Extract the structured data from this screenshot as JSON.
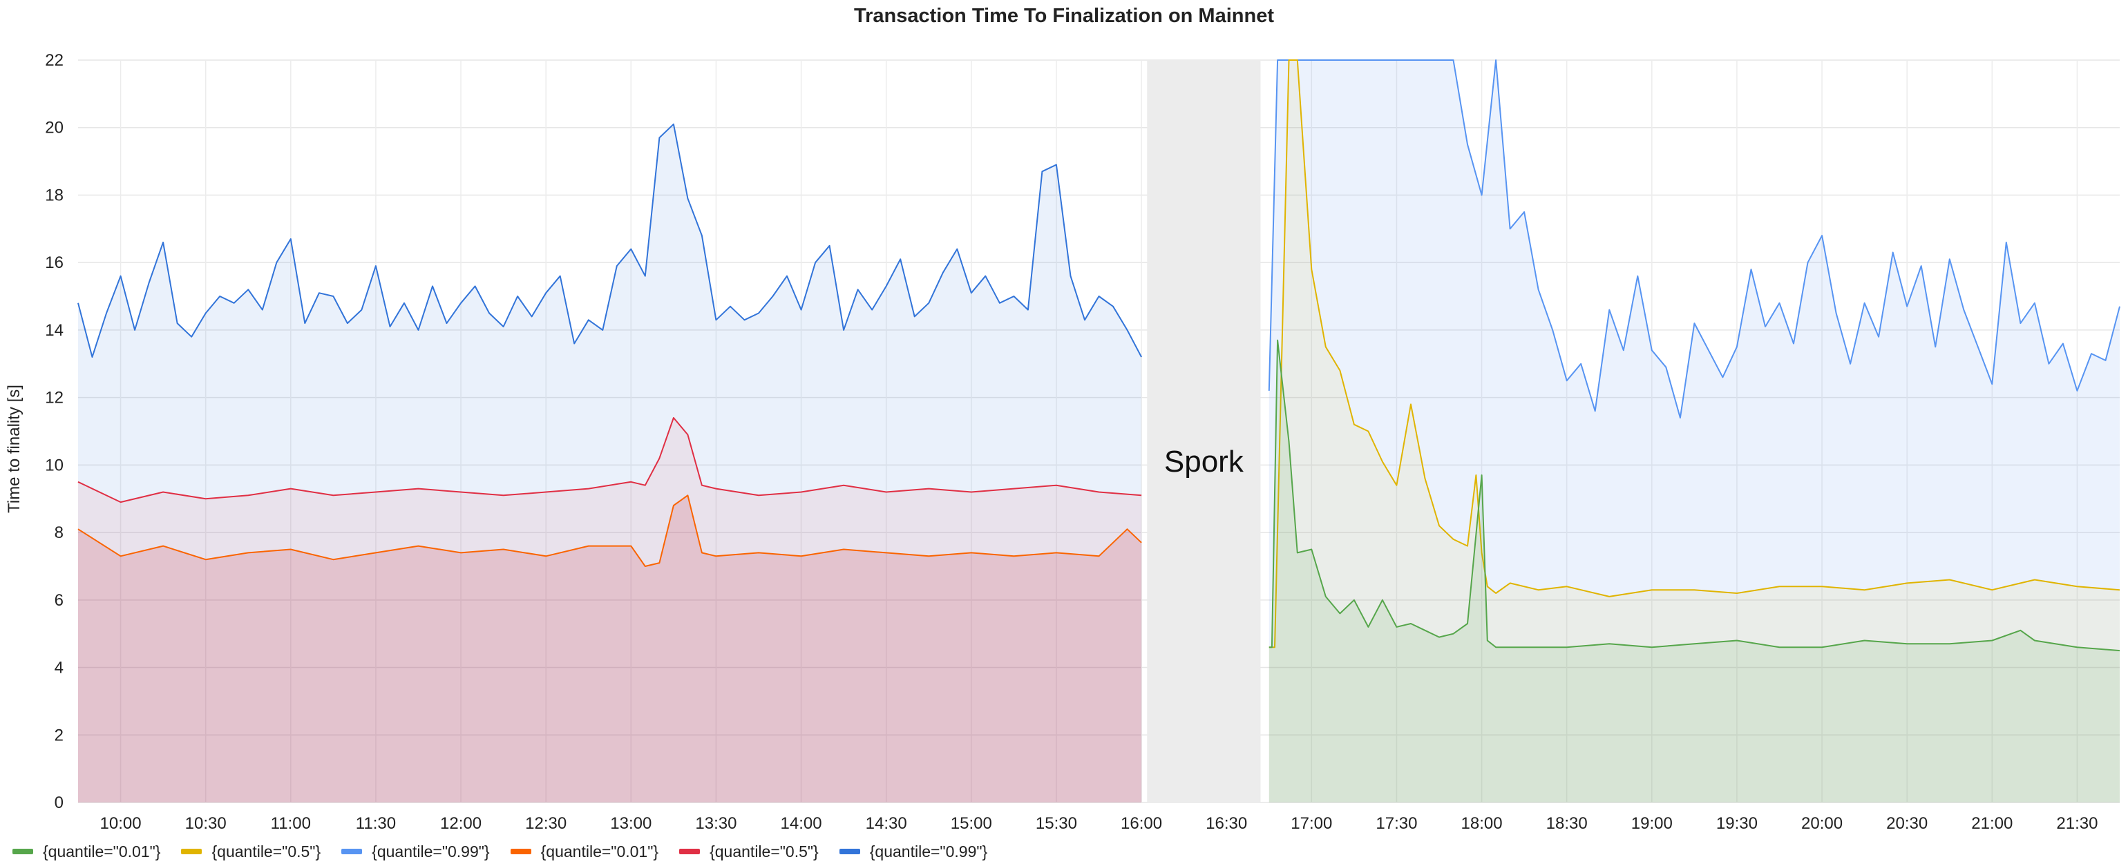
{
  "chart_data": {
    "type": "area",
    "title": "Transaction Time To Finalization on Mainnet",
    "ylabel": "Time to finality [s]",
    "xlabel": "",
    "ylim": [
      0,
      22
    ],
    "y_ticks": [
      0,
      2,
      4,
      6,
      8,
      10,
      12,
      14,
      16,
      18,
      20,
      22
    ],
    "xlim": [
      "09:45",
      "21:45"
    ],
    "x_ticks": [
      "10:00",
      "10:30",
      "11:00",
      "11:30",
      "12:00",
      "12:30",
      "13:00",
      "13:30",
      "14:00",
      "14:30",
      "15:00",
      "15:30",
      "16:00",
      "16:30",
      "17:00",
      "17:30",
      "18:00",
      "18:30",
      "19:00",
      "19:30",
      "20:00",
      "20:30",
      "21:00",
      "21:30"
    ],
    "grid": true,
    "annotation": {
      "text": "Spork",
      "x_start": "16:02",
      "x_end": "16:42",
      "color": "#ececec"
    },
    "legend_position": "bottom-left",
    "legend": [
      {
        "label": "{quantile=\"0.01\"}",
        "color": "#56a64b"
      },
      {
        "label": "{quantile=\"0.5\"}",
        "color": "#e0b400"
      },
      {
        "label": "{quantile=\"0.99\"}",
        "color": "#5794f2"
      },
      {
        "label": "{quantile=\"0.01\"}",
        "color": "#fa6400"
      },
      {
        "label": "{quantile=\"0.5\"}",
        "color": "#e02f44"
      },
      {
        "label": "{quantile=\"0.99\"}",
        "color": "#3274d9"
      }
    ],
    "series": [
      {
        "color": "#3274d9",
        "fill": "rgba(50,116,217,0.10)",
        "x": [
          "09:45",
          "09:50",
          "09:55",
          "10:00",
          "10:05",
          "10:10",
          "10:15",
          "10:20",
          "10:25",
          "10:30",
          "10:35",
          "10:40",
          "10:45",
          "10:50",
          "10:55",
          "11:00",
          "11:05",
          "11:10",
          "11:15",
          "11:20",
          "11:25",
          "11:30",
          "11:35",
          "11:40",
          "11:45",
          "11:50",
          "11:55",
          "12:00",
          "12:05",
          "12:10",
          "12:15",
          "12:20",
          "12:25",
          "12:30",
          "12:35",
          "12:40",
          "12:45",
          "12:50",
          "12:55",
          "13:00",
          "13:05",
          "13:10",
          "13:15",
          "13:20",
          "13:25",
          "13:30",
          "13:35",
          "13:40",
          "13:45",
          "13:50",
          "13:55",
          "14:00",
          "14:05",
          "14:10",
          "14:15",
          "14:20",
          "14:25",
          "14:30",
          "14:35",
          "14:40",
          "14:45",
          "14:50",
          "14:55",
          "15:00",
          "15:05",
          "15:10",
          "15:15",
          "15:20",
          "15:25",
          "15:30",
          "15:35",
          "15:40",
          "15:45",
          "15:50",
          "15:55",
          "16:00"
        ],
        "values": [
          14.8,
          13.2,
          14.5,
          15.6,
          14.0,
          15.4,
          16.6,
          14.2,
          13.8,
          14.5,
          15.0,
          14.8,
          15.2,
          14.6,
          16.0,
          16.7,
          14.2,
          15.1,
          15.0,
          14.2,
          14.6,
          15.9,
          14.1,
          14.8,
          14.0,
          15.3,
          14.2,
          14.8,
          15.3,
          14.5,
          14.1,
          15.0,
          14.4,
          15.1,
          15.6,
          13.6,
          14.3,
          14.0,
          15.9,
          16.4,
          15.6,
          19.7,
          20.1,
          17.9,
          16.8,
          14.3,
          14.7,
          14.3,
          14.5,
          15.0,
          15.6,
          14.6,
          16.0,
          16.5,
          14.0,
          15.2,
          14.6,
          15.3,
          16.1,
          14.4,
          14.8,
          15.7,
          16.4,
          15.1,
          15.6,
          14.8,
          15.0,
          14.6,
          18.7,
          18.9,
          15.6,
          14.3,
          15.0,
          14.7,
          14.0,
          13.2
        ]
      },
      {
        "color": "#e02f44",
        "fill": "rgba(224,47,68,0.08)",
        "x": [
          "09:45",
          "10:00",
          "10:15",
          "10:30",
          "10:45",
          "11:00",
          "11:15",
          "11:30",
          "11:45",
          "12:00",
          "12:15",
          "12:30",
          "12:45",
          "13:00",
          "13:05",
          "13:10",
          "13:15",
          "13:20",
          "13:25",
          "13:30",
          "13:45",
          "14:00",
          "14:15",
          "14:30",
          "14:45",
          "15:00",
          "15:15",
          "15:30",
          "15:45",
          "16:00"
        ],
        "values": [
          9.5,
          8.9,
          9.2,
          9.0,
          9.1,
          9.3,
          9.1,
          9.2,
          9.3,
          9.2,
          9.1,
          9.2,
          9.3,
          9.5,
          9.4,
          10.2,
          11.4,
          10.9,
          9.4,
          9.3,
          9.1,
          9.2,
          9.4,
          9.2,
          9.3,
          9.2,
          9.3,
          9.4,
          9.2,
          9.1
        ]
      },
      {
        "color": "#fa6400",
        "fill": "rgba(196,22,42,0.15)",
        "x": [
          "09:45",
          "10:00",
          "10:15",
          "10:30",
          "10:45",
          "11:00",
          "11:15",
          "11:30",
          "11:45",
          "12:00",
          "12:15",
          "12:30",
          "12:45",
          "13:00",
          "13:05",
          "13:10",
          "13:15",
          "13:20",
          "13:25",
          "13:30",
          "13:45",
          "14:00",
          "14:15",
          "14:30",
          "14:45",
          "15:00",
          "15:15",
          "15:30",
          "15:45",
          "15:55",
          "16:00"
        ],
        "values": [
          8.1,
          7.3,
          7.6,
          7.2,
          7.4,
          7.5,
          7.2,
          7.4,
          7.6,
          7.4,
          7.5,
          7.3,
          7.6,
          7.6,
          7.0,
          7.1,
          8.8,
          9.1,
          7.4,
          7.3,
          7.4,
          7.3,
          7.5,
          7.4,
          7.3,
          7.4,
          7.3,
          7.4,
          7.3,
          8.1,
          7.7
        ]
      },
      {
        "color": "#5794f2",
        "fill": "rgba(87,148,242,0.12)",
        "x": [
          "16:45",
          "16:48",
          "17:00",
          "17:10",
          "17:20",
          "17:30",
          "17:40",
          "17:50",
          "17:55",
          "18:00",
          "18:05",
          "18:10",
          "18:15",
          "18:20",
          "18:25",
          "18:30",
          "18:35",
          "18:40",
          "18:45",
          "18:50",
          "18:55",
          "19:00",
          "19:05",
          "19:10",
          "19:15",
          "19:20",
          "19:25",
          "19:30",
          "19:35",
          "19:40",
          "19:45",
          "19:50",
          "19:55",
          "20:00",
          "20:05",
          "20:10",
          "20:15",
          "20:20",
          "20:25",
          "20:30",
          "20:35",
          "20:40",
          "20:45",
          "20:50",
          "20:55",
          "21:00",
          "21:05",
          "21:10",
          "21:15",
          "21:20",
          "21:25",
          "21:30",
          "21:35",
          "21:40",
          "21:45"
        ],
        "values": [
          12.2,
          22,
          22,
          22,
          22,
          22,
          22,
          22,
          19.5,
          18.0,
          22,
          17.0,
          17.5,
          15.2,
          14.0,
          12.5,
          13.0,
          11.6,
          14.6,
          13.4,
          15.6,
          13.4,
          12.9,
          11.4,
          14.2,
          13.4,
          12.6,
          13.5,
          15.8,
          14.1,
          14.8,
          13.6,
          16.0,
          16.8,
          14.5,
          13.0,
          14.8,
          13.8,
          16.3,
          14.7,
          15.9,
          13.5,
          16.1,
          14.6,
          13.5,
          12.4,
          16.6,
          14.2,
          14.8,
          13.0,
          13.6,
          12.2,
          13.3,
          13.1,
          14.7
        ]
      },
      {
        "color": "#e0b400",
        "fill": "rgba(224,180,0,0.08)",
        "x": [
          "16:45",
          "16:47",
          "16:52",
          "16:55",
          "17:00",
          "17:05",
          "17:10",
          "17:15",
          "17:20",
          "17:25",
          "17:30",
          "17:35",
          "17:40",
          "17:45",
          "17:50",
          "17:55",
          "17:58",
          "18:00",
          "18:02",
          "18:05",
          "18:10",
          "18:20",
          "18:30",
          "18:45",
          "19:00",
          "19:15",
          "19:30",
          "19:45",
          "20:00",
          "20:15",
          "20:30",
          "20:45",
          "21:00",
          "21:15",
          "21:30",
          "21:45"
        ],
        "values": [
          4.6,
          4.6,
          22,
          22,
          15.8,
          13.5,
          12.8,
          11.2,
          11.0,
          10.1,
          9.4,
          11.8,
          9.6,
          8.2,
          7.8,
          7.6,
          9.7,
          7.4,
          6.4,
          6.2,
          6.5,
          6.3,
          6.4,
          6.1,
          6.3,
          6.3,
          6.2,
          6.4,
          6.4,
          6.3,
          6.5,
          6.6,
          6.3,
          6.6,
          6.4,
          6.3
        ]
      },
      {
        "color": "#56a64b",
        "fill": "rgba(86,166,75,0.12)",
        "x": [
          "16:45",
          "16:46",
          "16:48",
          "16:52",
          "16:55",
          "17:00",
          "17:05",
          "17:10",
          "17:15",
          "17:20",
          "17:25",
          "17:30",
          "17:35",
          "17:40",
          "17:45",
          "17:50",
          "17:55",
          "18:00",
          "18:02",
          "18:05",
          "18:15",
          "18:30",
          "18:45",
          "19:00",
          "19:15",
          "19:30",
          "19:45",
          "20:00",
          "20:15",
          "20:30",
          "20:45",
          "21:00",
          "21:10",
          "21:15",
          "21:30",
          "21:45"
        ],
        "values": [
          4.6,
          4.6,
          13.7,
          10.7,
          7.4,
          7.5,
          6.1,
          5.6,
          6.0,
          5.2,
          6.0,
          5.2,
          5.3,
          5.1,
          4.9,
          5.0,
          5.3,
          9.7,
          4.8,
          4.6,
          4.6,
          4.6,
          4.7,
          4.6,
          4.7,
          4.8,
          4.6,
          4.6,
          4.8,
          4.7,
          4.7,
          4.8,
          5.1,
          4.8,
          4.6,
          4.5
        ]
      }
    ]
  }
}
